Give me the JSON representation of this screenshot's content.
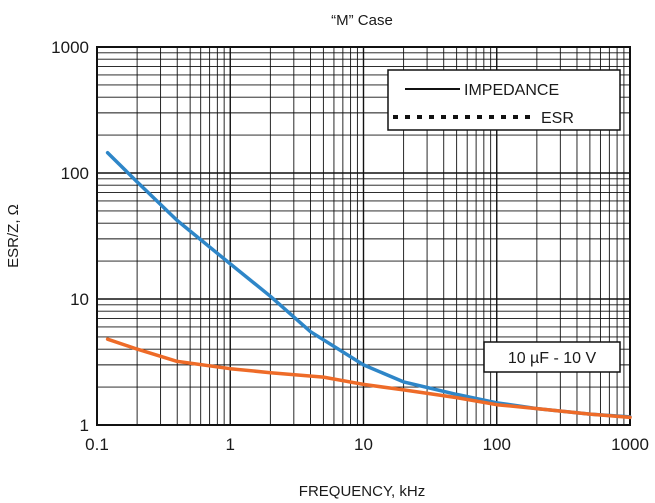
{
  "chart_data": {
    "type": "line",
    "title": "“M” Case",
    "xlabel": "FREQUENCY, kHz",
    "ylabel": "ESR/Z, Ω",
    "x_scale": "log",
    "y_scale": "log",
    "xlim": [
      0.1,
      1000
    ],
    "ylim": [
      1,
      1000
    ],
    "x_ticks": [
      "0.1",
      "1",
      "10",
      "100",
      "1000"
    ],
    "y_ticks": [
      "1",
      "10",
      "100",
      "1000"
    ],
    "grid": true,
    "legend_position": "top-right",
    "annotation": "10 µF - 10 V",
    "series": [
      {
        "name": "IMPEDANCE",
        "color": "#2e86c8",
        "legend_style": "solid",
        "points": [
          [
            0.12,
            145
          ],
          [
            0.2,
            85
          ],
          [
            0.4,
            42
          ],
          [
            1,
            19
          ],
          [
            2,
            10.5
          ],
          [
            4,
            5.5
          ],
          [
            10,
            3.0
          ],
          [
            20,
            2.2
          ],
          [
            50,
            1.75
          ],
          [
            100,
            1.5
          ],
          [
            200,
            1.35
          ],
          [
            500,
            1.22
          ],
          [
            1000,
            1.16
          ]
        ]
      },
      {
        "name": "ESR",
        "color": "#ee6b28",
        "legend_style": "dotted",
        "points": [
          [
            0.12,
            4.8
          ],
          [
            0.2,
            4.0
          ],
          [
            0.4,
            3.2
          ],
          [
            1,
            2.8
          ],
          [
            2,
            2.6
          ],
          [
            5,
            2.4
          ],
          [
            10,
            2.1
          ],
          [
            20,
            1.9
          ],
          [
            50,
            1.65
          ],
          [
            100,
            1.45
          ],
          [
            200,
            1.35
          ],
          [
            500,
            1.22
          ],
          [
            1000,
            1.15
          ]
        ]
      }
    ]
  }
}
